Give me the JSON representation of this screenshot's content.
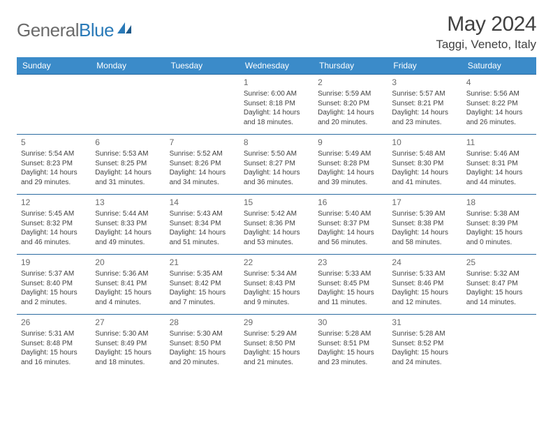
{
  "logo": {
    "word1": "General",
    "word2": "Blue"
  },
  "title": "May 2024",
  "location": "Taggi, Veneto, Italy",
  "colors": {
    "header_bg": "#3b8bc9",
    "header_text": "#ffffff",
    "row_border": "#2a6aa0",
    "text": "#414141",
    "muted": "#6a6a6a",
    "logo_gray": "#6b6b6b",
    "logo_blue": "#2a7ab8"
  },
  "day_headers": [
    "Sunday",
    "Monday",
    "Tuesday",
    "Wednesday",
    "Thursday",
    "Friday",
    "Saturday"
  ],
  "weeks": [
    [
      null,
      null,
      null,
      {
        "n": "1",
        "sunrise": "6:00 AM",
        "sunset": "8:18 PM",
        "day_h": 14,
        "day_m": 18
      },
      {
        "n": "2",
        "sunrise": "5:59 AM",
        "sunset": "8:20 PM",
        "day_h": 14,
        "day_m": 20
      },
      {
        "n": "3",
        "sunrise": "5:57 AM",
        "sunset": "8:21 PM",
        "day_h": 14,
        "day_m": 23
      },
      {
        "n": "4",
        "sunrise": "5:56 AM",
        "sunset": "8:22 PM",
        "day_h": 14,
        "day_m": 26
      }
    ],
    [
      {
        "n": "5",
        "sunrise": "5:54 AM",
        "sunset": "8:23 PM",
        "day_h": 14,
        "day_m": 29
      },
      {
        "n": "6",
        "sunrise": "5:53 AM",
        "sunset": "8:25 PM",
        "day_h": 14,
        "day_m": 31
      },
      {
        "n": "7",
        "sunrise": "5:52 AM",
        "sunset": "8:26 PM",
        "day_h": 14,
        "day_m": 34
      },
      {
        "n": "8",
        "sunrise": "5:50 AM",
        "sunset": "8:27 PM",
        "day_h": 14,
        "day_m": 36
      },
      {
        "n": "9",
        "sunrise": "5:49 AM",
        "sunset": "8:28 PM",
        "day_h": 14,
        "day_m": 39
      },
      {
        "n": "10",
        "sunrise": "5:48 AM",
        "sunset": "8:30 PM",
        "day_h": 14,
        "day_m": 41
      },
      {
        "n": "11",
        "sunrise": "5:46 AM",
        "sunset": "8:31 PM",
        "day_h": 14,
        "day_m": 44
      }
    ],
    [
      {
        "n": "12",
        "sunrise": "5:45 AM",
        "sunset": "8:32 PM",
        "day_h": 14,
        "day_m": 46
      },
      {
        "n": "13",
        "sunrise": "5:44 AM",
        "sunset": "8:33 PM",
        "day_h": 14,
        "day_m": 49
      },
      {
        "n": "14",
        "sunrise": "5:43 AM",
        "sunset": "8:34 PM",
        "day_h": 14,
        "day_m": 51
      },
      {
        "n": "15",
        "sunrise": "5:42 AM",
        "sunset": "8:36 PM",
        "day_h": 14,
        "day_m": 53
      },
      {
        "n": "16",
        "sunrise": "5:40 AM",
        "sunset": "8:37 PM",
        "day_h": 14,
        "day_m": 56
      },
      {
        "n": "17",
        "sunrise": "5:39 AM",
        "sunset": "8:38 PM",
        "day_h": 14,
        "day_m": 58
      },
      {
        "n": "18",
        "sunrise": "5:38 AM",
        "sunset": "8:39 PM",
        "day_h": 15,
        "day_m": 0
      }
    ],
    [
      {
        "n": "19",
        "sunrise": "5:37 AM",
        "sunset": "8:40 PM",
        "day_h": 15,
        "day_m": 2
      },
      {
        "n": "20",
        "sunrise": "5:36 AM",
        "sunset": "8:41 PM",
        "day_h": 15,
        "day_m": 4
      },
      {
        "n": "21",
        "sunrise": "5:35 AM",
        "sunset": "8:42 PM",
        "day_h": 15,
        "day_m": 7
      },
      {
        "n": "22",
        "sunrise": "5:34 AM",
        "sunset": "8:43 PM",
        "day_h": 15,
        "day_m": 9
      },
      {
        "n": "23",
        "sunrise": "5:33 AM",
        "sunset": "8:45 PM",
        "day_h": 15,
        "day_m": 11
      },
      {
        "n": "24",
        "sunrise": "5:33 AM",
        "sunset": "8:46 PM",
        "day_h": 15,
        "day_m": 12
      },
      {
        "n": "25",
        "sunrise": "5:32 AM",
        "sunset": "8:47 PM",
        "day_h": 15,
        "day_m": 14
      }
    ],
    [
      {
        "n": "26",
        "sunrise": "5:31 AM",
        "sunset": "8:48 PM",
        "day_h": 15,
        "day_m": 16
      },
      {
        "n": "27",
        "sunrise": "5:30 AM",
        "sunset": "8:49 PM",
        "day_h": 15,
        "day_m": 18
      },
      {
        "n": "28",
        "sunrise": "5:30 AM",
        "sunset": "8:50 PM",
        "day_h": 15,
        "day_m": 20
      },
      {
        "n": "29",
        "sunrise": "5:29 AM",
        "sunset": "8:50 PM",
        "day_h": 15,
        "day_m": 21
      },
      {
        "n": "30",
        "sunrise": "5:28 AM",
        "sunset": "8:51 PM",
        "day_h": 15,
        "day_m": 23
      },
      {
        "n": "31",
        "sunrise": "5:28 AM",
        "sunset": "8:52 PM",
        "day_h": 15,
        "day_m": 24
      },
      null
    ]
  ],
  "labels": {
    "sunrise": "Sunrise:",
    "sunset": "Sunset:",
    "daylight": "Daylight:",
    "hours": "hours",
    "and": "and",
    "minutes": "minutes."
  }
}
